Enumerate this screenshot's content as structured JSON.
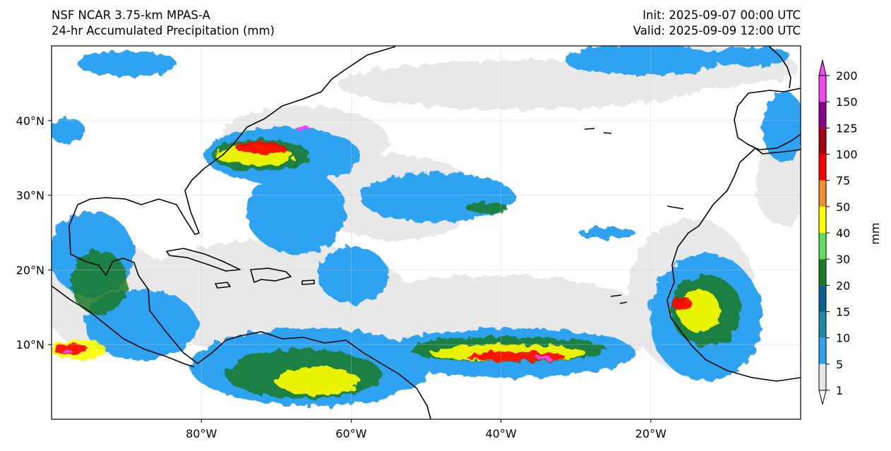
{
  "header": {
    "model": "NSF NCAR 3.75-km MPAS-A",
    "field": "24-hr Accumulated Precipitation (mm)",
    "init": "Init: 2025-09-07 00:00 UTC",
    "valid": "Valid: 2025-09-09 12:00 UTC"
  },
  "map": {
    "lon_range": [
      -100,
      0
    ],
    "lat_range": [
      0,
      50
    ],
    "lat_ticks": [
      {
        "value": 40,
        "label": "40°N"
      },
      {
        "value": 30,
        "label": "30°N"
      },
      {
        "value": 20,
        "label": "20°N"
      },
      {
        "value": 10,
        "label": "10°N"
      }
    ],
    "lon_ticks": [
      {
        "value": -80,
        "label": "80°W"
      },
      {
        "value": -60,
        "label": "60°W"
      },
      {
        "value": -40,
        "label": "40°W"
      },
      {
        "value": -20,
        "label": "20°W"
      }
    ],
    "grid": true
  },
  "colorbar": {
    "unit_label": "mm",
    "ticks": [
      "1",
      "5",
      "10",
      "15",
      "20",
      "30",
      "40",
      "50",
      "75",
      "100",
      "125",
      "150",
      "200"
    ],
    "colors": [
      "#e6e6e6",
      "#2fa3f2",
      "#1f8aa3",
      "#085f8e",
      "#1d7a28",
      "#5fdd5f",
      "#ffff00",
      "#ef8e2d",
      "#ff0000",
      "#a8000e",
      "#890088",
      "#f247f2"
    ],
    "extend": "both"
  }
}
